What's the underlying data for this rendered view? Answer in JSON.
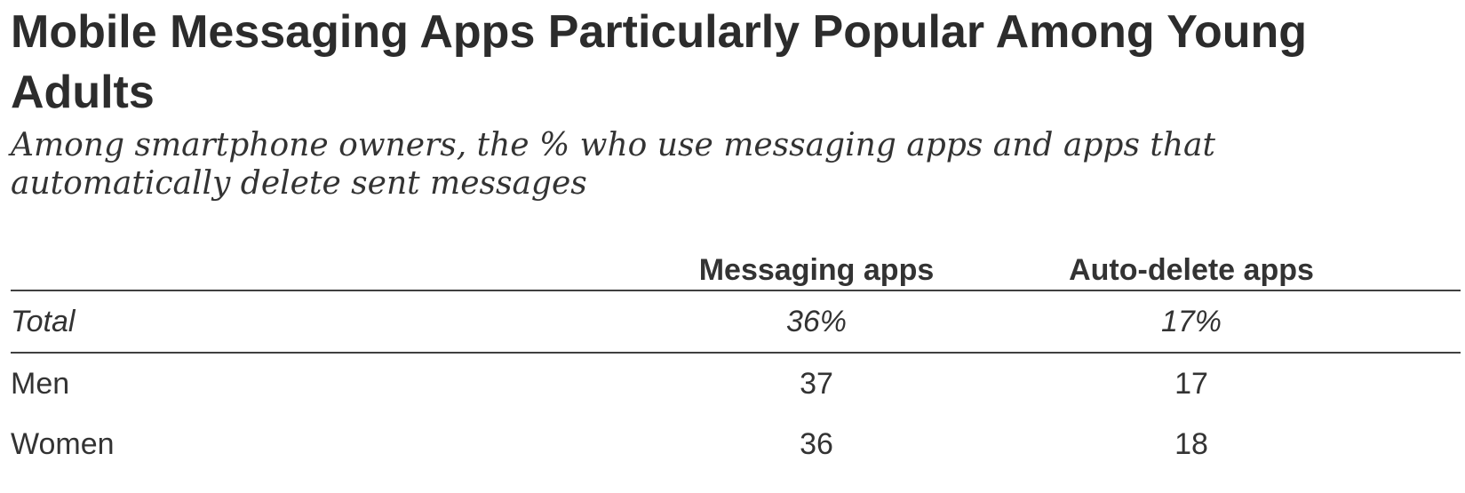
{
  "chart_data": {
    "type": "table",
    "title": "Mobile Messaging Apps Particularly Popular Among Young Adults",
    "subtitle": "Among smartphone owners, the % who use messaging apps and apps that automatically delete sent messages",
    "columns": [
      "Messaging apps",
      "Auto-delete apps"
    ],
    "rows": [
      {
        "label": "Total",
        "values": [
          "36%",
          "17%"
        ]
      },
      {
        "label": "Men",
        "values": [
          "37",
          "17"
        ]
      },
      {
        "label": "Women",
        "values": [
          "36",
          "18"
        ]
      }
    ]
  }
}
